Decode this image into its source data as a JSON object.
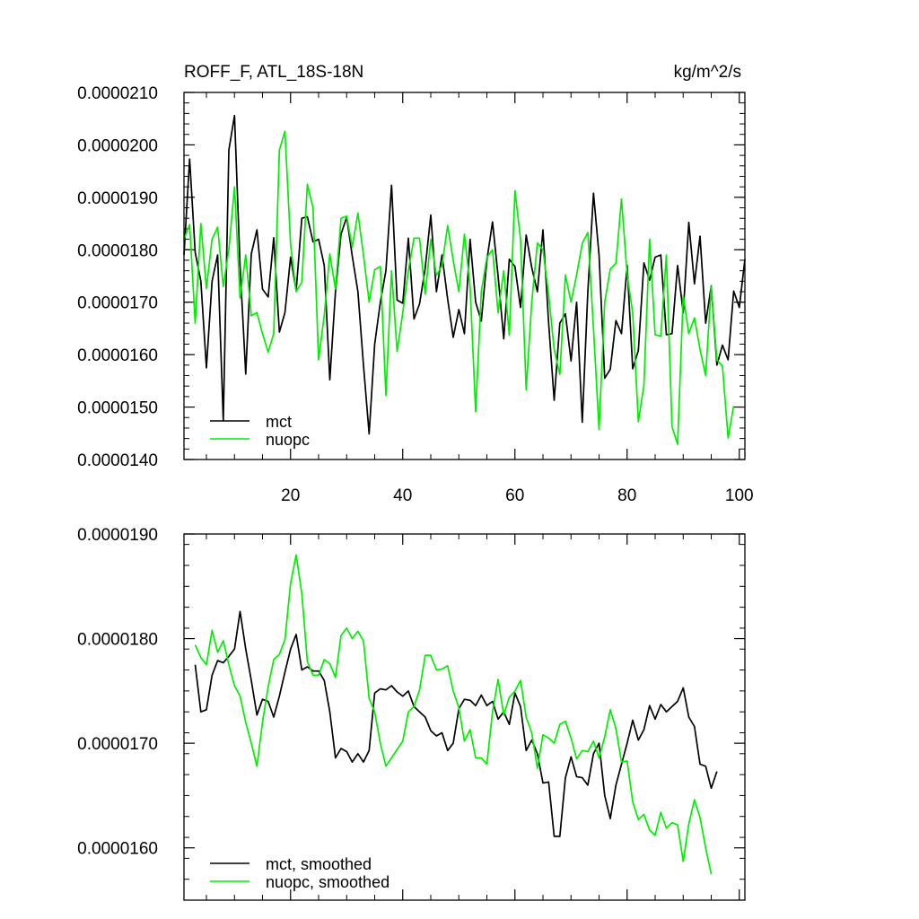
{
  "chart_data": [
    {
      "type": "line",
      "title": "ROFF_F, ATL_18S-18N",
      "units": "kg/m^2/s",
      "xlim": [
        1,
        101
      ],
      "ylim": [
        1.4e-05,
        2.1e-05
      ],
      "x_ticks": [
        20,
        40,
        60,
        80,
        100
      ],
      "x_tick_labels": [
        "20",
        "40",
        "60",
        "80",
        "100"
      ],
      "y_ticks": [
        1.4e-05,
        1.5e-05,
        1.6e-05,
        1.7e-05,
        1.8e-05,
        1.9e-05,
        2e-05,
        2.1e-05
      ],
      "y_tick_labels": [
        "0.0000140",
        "0.0000150",
        "0.0000160",
        "0.0000170",
        "0.0000180",
        "0.0000190",
        "0.0000200",
        "0.0000210"
      ],
      "legend": {
        "position": "bottom-left",
        "entries": [
          "mct",
          "nuopc"
        ]
      },
      "series": [
        {
          "name": "mct",
          "color": "#000000",
          "x_start": 1,
          "values": [
            1.79e-05,
            1.973e-05,
            1.795e-05,
            1.74e-05,
            1.575e-05,
            1.74e-05,
            1.79e-05,
            1.474e-05,
            1.99e-05,
            2.056e-05,
            1.77e-05,
            1.563e-05,
            1.792e-05,
            1.838e-05,
            1.725e-05,
            1.71e-05,
            1.823e-05,
            1.643e-05,
            1.68e-05,
            1.786e-05,
            1.722e-05,
            1.86e-05,
            1.863e-05,
            1.815e-05,
            1.82e-05,
            1.77e-05,
            1.552e-05,
            1.72e-05,
            1.83e-05,
            1.862e-05,
            1.788e-05,
            1.72e-05,
            1.58e-05,
            1.449e-05,
            1.62e-05,
            1.7e-05,
            1.76e-05,
            1.923e-05,
            1.704e-05,
            1.698e-05,
            1.822e-05,
            1.668e-05,
            1.697e-05,
            1.765e-05,
            1.866e-05,
            1.72e-05,
            1.79e-05,
            1.706e-05,
            1.633e-05,
            1.686e-05,
            1.64e-05,
            1.82e-05,
            1.7e-05,
            1.664e-05,
            1.78e-05,
            1.853e-05,
            1.75e-05,
            1.63e-05,
            1.782e-05,
            1.768e-05,
            1.69e-05,
            1.828e-05,
            1.766e-05,
            1.72e-05,
            1.838e-05,
            1.661e-05,
            1.513e-05,
            1.66e-05,
            1.678e-05,
            1.588e-05,
            1.7e-05,
            1.471e-05,
            1.72e-05,
            1.908e-05,
            1.79e-05,
            1.555e-05,
            1.572e-05,
            1.665e-05,
            1.64e-05,
            1.77e-05,
            1.573e-05,
            1.608e-05,
            1.775e-05,
            1.742e-05,
            1.786e-05,
            1.79e-05,
            1.638e-05,
            1.64e-05,
            1.77e-05,
            1.68e-05,
            1.852e-05,
            1.735e-05,
            1.826e-05,
            1.66e-05,
            1.731e-05,
            1.58e-05,
            1.618e-05,
            1.59e-05,
            1.721e-05,
            1.69e-05,
            1.782e-05
          ]
        },
        {
          "name": "nuopc",
          "color": "#00ee00",
          "x_start": 1,
          "values": [
            1.82e-05,
            1.848e-05,
            1.66e-05,
            1.85e-05,
            1.726e-05,
            1.82e-05,
            1.843e-05,
            1.73e-05,
            1.8e-05,
            1.92e-05,
            1.708e-05,
            1.79e-05,
            1.674e-05,
            1.68e-05,
            1.64e-05,
            1.605e-05,
            1.64e-05,
            1.99e-05,
            2.026e-05,
            1.81e-05,
            1.72e-05,
            1.738e-05,
            1.925e-05,
            1.88e-05,
            1.59e-05,
            1.675e-05,
            1.792e-05,
            1.725e-05,
            1.86e-05,
            1.864e-05,
            1.805e-05,
            1.87e-05,
            1.79e-05,
            1.7e-05,
            1.762e-05,
            1.768e-05,
            1.522e-05,
            1.76e-05,
            1.606e-05,
            1.68e-05,
            1.76e-05,
            1.822e-05,
            1.822e-05,
            1.715e-05,
            1.82e-05,
            1.751e-05,
            1.77e-05,
            1.846e-05,
            1.78e-05,
            1.72e-05,
            1.83e-05,
            1.73e-05,
            1.491e-05,
            1.72e-05,
            1.785e-05,
            1.8e-05,
            1.68e-05,
            1.76e-05,
            1.637e-05,
            1.913e-05,
            1.82e-05,
            1.533e-05,
            1.7e-05,
            1.813e-05,
            1.8e-05,
            1.715e-05,
            1.61e-05,
            1.562e-05,
            1.752e-05,
            1.7e-05,
            1.752e-05,
            1.812e-05,
            1.833e-05,
            1.65e-05,
            1.457e-05,
            1.7e-05,
            1.763e-05,
            1.774e-05,
            1.897e-05,
            1.752e-05,
            1.68e-05,
            1.472e-05,
            1.542e-05,
            1.82e-05,
            1.638e-05,
            1.635e-05,
            1.79e-05,
            1.463e-05,
            1.429e-05,
            1.713e-05,
            1.64e-05,
            1.67e-05,
            1.61e-05,
            1.56e-05,
            1.73e-05,
            1.59e-05,
            1.578e-05,
            1.441e-05,
            1.502e-05
          ]
        }
      ]
    },
    {
      "type": "line",
      "xlim": [
        1,
        101
      ],
      "ylim": [
        1.55e-05,
        1.9e-05
      ],
      "y_ticks": [
        1.6e-05,
        1.7e-05,
        1.8e-05,
        1.9e-05
      ],
      "y_tick_labels": [
        "0.0000160",
        "0.0000170",
        "0.0000180",
        "0.0000190"
      ],
      "legend": {
        "position": "bottom-left",
        "entries": [
          "mct, smoothed",
          "nuopc, smoothed"
        ]
      },
      "series": [
        {
          "name": "mct, smoothed",
          "color": "#000000",
          "x_start": 3,
          "values": [
            1.775e-05,
            1.73e-05,
            1.732e-05,
            1.765e-05,
            1.779e-05,
            1.777e-05,
            1.783e-05,
            1.79e-05,
            1.826e-05,
            1.79e-05,
            1.76e-05,
            1.727e-05,
            1.742e-05,
            1.74e-05,
            1.725e-05,
            1.745e-05,
            1.768e-05,
            1.79e-05,
            1.804e-05,
            1.77e-05,
            1.773e-05,
            1.769e-05,
            1.769e-05,
            1.76e-05,
            1.73e-05,
            1.686e-05,
            1.695e-05,
            1.692e-05,
            1.682e-05,
            1.69e-05,
            1.682e-05,
            1.693e-05,
            1.748e-05,
            1.752e-05,
            1.751e-05,
            1.755e-05,
            1.749e-05,
            1.745e-05,
            1.75e-05,
            1.735e-05,
            1.73e-05,
            1.725e-05,
            1.712e-05,
            1.707e-05,
            1.71e-05,
            1.693e-05,
            1.7e-05,
            1.733e-05,
            1.742e-05,
            1.741e-05,
            1.736e-05,
            1.746e-05,
            1.736e-05,
            1.74e-05,
            1.723e-05,
            1.73e-05,
            1.718e-05,
            1.748e-05,
            1.735e-05,
            1.693e-05,
            1.703e-05,
            1.69e-05,
            1.662e-05,
            1.663e-05,
            1.611e-05,
            1.611e-05,
            1.667e-05,
            1.687e-05,
            1.668e-05,
            1.667e-05,
            1.66e-05,
            1.69e-05,
            1.7e-05,
            1.65e-05,
            1.628e-05,
            1.66e-05,
            1.68e-05,
            1.7e-05,
            1.722e-05,
            1.703e-05,
            1.713e-05,
            1.736e-05,
            1.723e-05,
            1.737e-05,
            1.73e-05,
            1.735e-05,
            1.74e-05,
            1.753e-05,
            1.725e-05,
            1.716e-05,
            1.68e-05,
            1.678e-05,
            1.657e-05,
            1.673e-05
          ]
        },
        {
          "name": "nuopc, smoothed",
          "color": "#00ee00",
          "x_start": 3,
          "values": [
            1.794e-05,
            1.782e-05,
            1.775e-05,
            1.808e-05,
            1.787e-05,
            1.798e-05,
            1.775e-05,
            1.755e-05,
            1.745e-05,
            1.72e-05,
            1.7e-05,
            1.678e-05,
            1.72e-05,
            1.754e-05,
            1.78e-05,
            1.785e-05,
            1.799e-05,
            1.853e-05,
            1.88e-05,
            1.843e-05,
            1.778e-05,
            1.765e-05,
            1.765e-05,
            1.78e-05,
            1.776e-05,
            1.763e-05,
            1.803e-05,
            1.81e-05,
            1.8e-05,
            1.807e-05,
            1.798e-05,
            1.743e-05,
            1.73e-05,
            1.7e-05,
            1.678e-05,
            1.686e-05,
            1.694e-05,
            1.702e-05,
            1.73e-05,
            1.735e-05,
            1.751e-05,
            1.784e-05,
            1.784e-05,
            1.77e-05,
            1.771e-05,
            1.774e-05,
            1.75e-05,
            1.734e-05,
            1.702e-05,
            1.713e-05,
            1.686e-05,
            1.686e-05,
            1.68e-05,
            1.73e-05,
            1.761e-05,
            1.727e-05,
            1.744e-05,
            1.75e-05,
            1.76e-05,
            1.725e-05,
            1.71e-05,
            1.676e-05,
            1.708e-05,
            1.705e-05,
            1.7e-05,
            1.718e-05,
            1.721e-05,
            1.705e-05,
            1.685e-05,
            1.693e-05,
            1.692e-05,
            1.702e-05,
            1.686e-05,
            1.706e-05,
            1.732e-05,
            1.714e-05,
            1.682e-05,
            1.683e-05,
            1.644e-05,
            1.627e-05,
            1.632e-05,
            1.617e-05,
            1.612e-05,
            1.634e-05,
            1.619e-05,
            1.624e-05,
            1.622e-05,
            1.587e-05,
            1.623e-05,
            1.646e-05,
            1.629e-05,
            1.6e-05,
            1.575e-05
          ]
        }
      ]
    }
  ]
}
